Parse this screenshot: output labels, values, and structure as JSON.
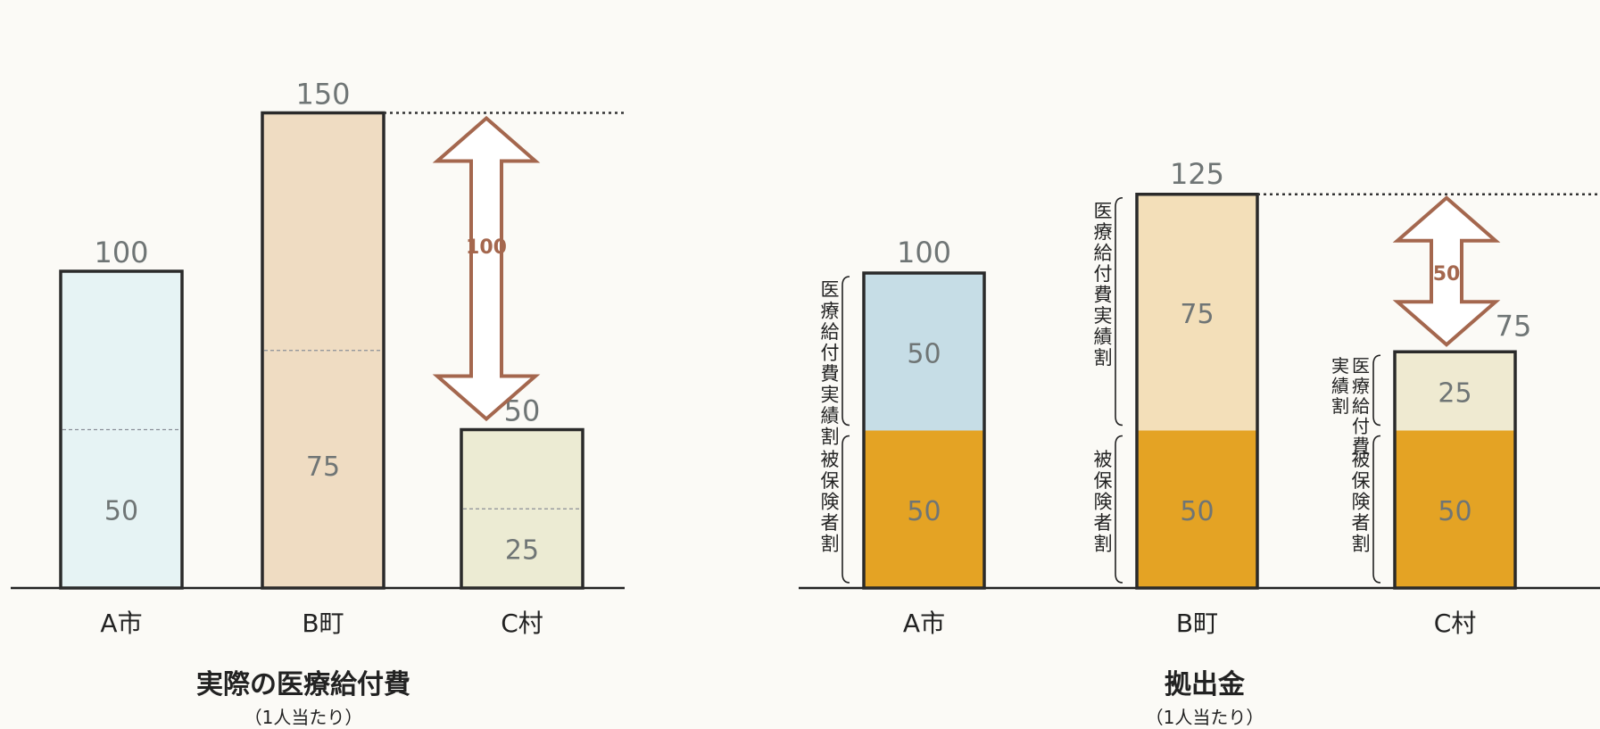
{
  "colors": {
    "a_shi_left": "#e6f3f4",
    "b_machi_left": "#efdcc2",
    "c_mura_left": "#ecebd3",
    "a_shi_top": "#c6dde6",
    "b_machi_top": "#f3dfb9",
    "c_mura_top": "#efead1",
    "hihokensha": "#e4a324",
    "arrow": "#a4674e",
    "bar_border": "#2a2a2a",
    "value_text": "#6f7575"
  },
  "chart_data": [
    {
      "type": "bar",
      "title": "実際の医療給付費",
      "subtitle": "（1人当たり）",
      "categories": [
        "A市",
        "B町",
        "C村"
      ],
      "totals": [
        100,
        150,
        50
      ],
      "values": [
        100,
        150,
        50
      ],
      "inner_labels": [
        "50",
        "75",
        "25"
      ],
      "difference_annotation": {
        "from": "B町",
        "to": "C村",
        "label": "100",
        "value": 100
      }
    },
    {
      "type": "bar",
      "stacked": true,
      "title": "拠出金",
      "subtitle": "（1人当たり）",
      "categories": [
        "A市",
        "B町",
        "C村"
      ],
      "totals": [
        100,
        125,
        75
      ],
      "series": [
        {
          "name": "被保険者割",
          "values": [
            50,
            50,
            50
          ]
        },
        {
          "name": "医療給付費実績割",
          "values": [
            50,
            75,
            25
          ]
        }
      ],
      "difference_annotation": {
        "from": "B町",
        "to": "C村",
        "label": "50",
        "value": 50
      },
      "bracket_labels": {
        "top": [
          "医療給付費実績割",
          "医療給付費実績割",
          "医療給付費実績割"
        ],
        "bottom": [
          "被保険者割",
          "被保険者割",
          "被保険者割"
        ]
      }
    }
  ]
}
